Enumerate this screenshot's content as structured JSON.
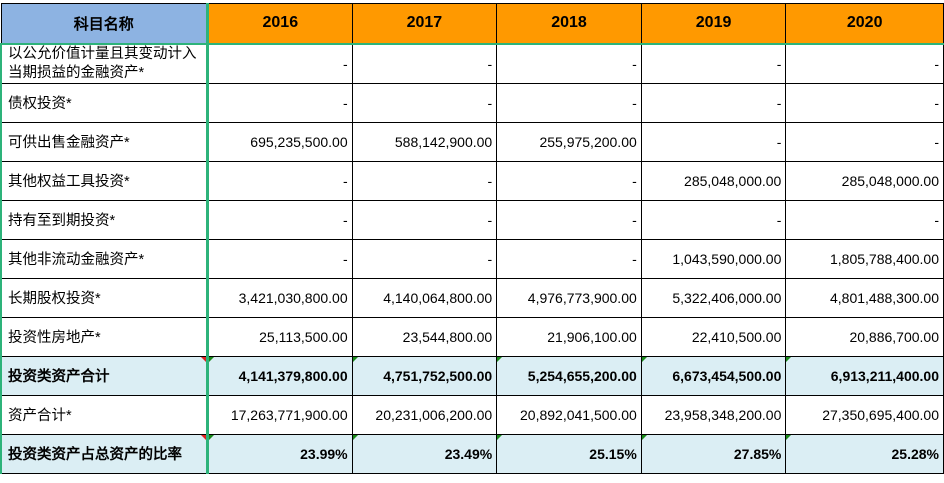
{
  "header": {
    "label": "科目名称",
    "years": [
      "2016",
      "2017",
      "2018",
      "2019",
      "2020"
    ]
  },
  "rows": [
    {
      "label": "以公允价值计量且其变动计入当期损益的金融资产*",
      "values": [
        "-",
        "-",
        "-",
        "-",
        "-"
      ],
      "highlight": false
    },
    {
      "label": "债权投资*",
      "values": [
        "-",
        "-",
        "-",
        "-",
        "-"
      ],
      "highlight": false
    },
    {
      "label": "可供出售金融资产*",
      "values": [
        "695,235,500.00",
        "588,142,900.00",
        "255,975,200.00",
        "-",
        "-"
      ],
      "highlight": false
    },
    {
      "label": "其他权益工具投资*",
      "values": [
        "-",
        "-",
        "-",
        "285,048,000.00",
        "285,048,000.00"
      ],
      "highlight": false
    },
    {
      "label": "持有至到期投资*",
      "values": [
        "-",
        "-",
        "-",
        "-",
        "-"
      ],
      "highlight": false
    },
    {
      "label": "其他非流动金融资产*",
      "values": [
        "-",
        "-",
        "-",
        "1,043,590,000.00",
        "1,805,788,400.00"
      ],
      "highlight": false
    },
    {
      "label": "长期股权投资*",
      "values": [
        "3,421,030,800.00",
        "4,140,064,800.00",
        "4,976,773,900.00",
        "5,322,406,000.00",
        "4,801,488,300.00"
      ],
      "highlight": false
    },
    {
      "label": "投资性房地产*",
      "values": [
        "25,113,500.00",
        "23,544,800.00",
        "21,906,100.00",
        "22,410,500.00",
        "20,886,700.00"
      ],
      "highlight": false
    },
    {
      "label": "投资类资产合计",
      "values": [
        "4,141,379,800.00",
        "4,751,752,500.00",
        "5,254,655,200.00",
        "6,673,454,500.00",
        "6,913,211,400.00"
      ],
      "highlight": true
    },
    {
      "label": "资产合计*",
      "values": [
        "17,263,771,900.00",
        "20,231,006,200.00",
        "20,892,041,500.00",
        "23,958,348,200.00",
        "27,350,695,400.00"
      ],
      "highlight": false
    },
    {
      "label": "投资类资产占总资产的比率",
      "values": [
        "23.99%",
        "23.49%",
        "25.15%",
        "27.85%",
        "25.28%"
      ],
      "highlight": true
    }
  ],
  "colors": {
    "label_header": "#8db3e2",
    "year_header": "#ff9900",
    "highlight_row": "#dbeef4",
    "freeze_line": "#2db37a"
  }
}
